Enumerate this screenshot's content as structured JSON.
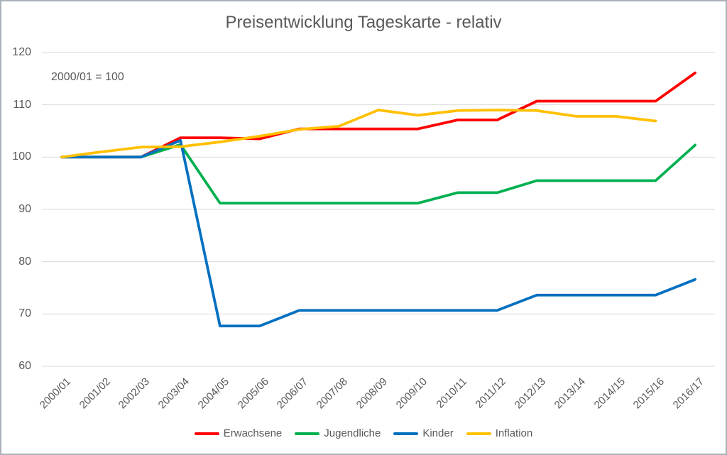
{
  "title": "Preisentwicklung Tageskarte - relativ",
  "annotation": "2000/01 = 100",
  "colors": {
    "title_text": "#595959",
    "axis_text": "#595959",
    "gridline": "#d9d9d9",
    "frame_border": "#a9b0b7",
    "erwachsene": "#ff0000",
    "jugendliche": "#00b050",
    "kinder": "#0070c0",
    "inflation": "#ffc000"
  },
  "chart_data": {
    "type": "line",
    "title": "Preisentwicklung Tageskarte - relativ",
    "annotation": "2000/01 = 100",
    "xlabel": "",
    "ylabel": "",
    "ylim": [
      60,
      120
    ],
    "ytick_step": 10,
    "grid": true,
    "legend_position": "bottom",
    "categories": [
      "2000/01",
      "2001/02",
      "2002/03",
      "2003/04",
      "2004/05",
      "2005/06",
      "2006/07",
      "2007/08",
      "2008/09",
      "2009/10",
      "2010/11",
      "2011/12",
      "2012/13",
      "2013/14",
      "2014/15",
      "2015/16",
      "2016/17"
    ],
    "series": [
      {
        "name": "Erwachsene",
        "color": "#ff0000",
        "values": [
          100,
          100,
          100,
          103.7,
          103.7,
          103.5,
          105.4,
          105.4,
          105.4,
          105.4,
          107.1,
          107.1,
          110.7,
          110.7,
          110.7,
          110.7,
          116.1
        ]
      },
      {
        "name": "Jugendliche",
        "color": "#00b050",
        "values": [
          100,
          100,
          100,
          102.4,
          91.2,
          91.2,
          91.2,
          91.2,
          91.2,
          91.2,
          93.2,
          93.2,
          95.5,
          95.5,
          95.5,
          95.5,
          102.3
        ]
      },
      {
        "name": "Kinder",
        "color": "#0070c0",
        "values": [
          100,
          100,
          100,
          103.2,
          67.7,
          67.7,
          70.7,
          70.7,
          70.7,
          70.7,
          70.7,
          70.7,
          73.6,
          73.6,
          73.6,
          73.6,
          76.6
        ]
      },
      {
        "name": "Inflation",
        "color": "#ffc000",
        "values": [
          100,
          101.0,
          101.9,
          102.0,
          102.9,
          104.0,
          105.3,
          105.9,
          109.0,
          108.0,
          108.9,
          109.0,
          108.9,
          107.8,
          107.8,
          106.9,
          null
        ]
      }
    ]
  }
}
